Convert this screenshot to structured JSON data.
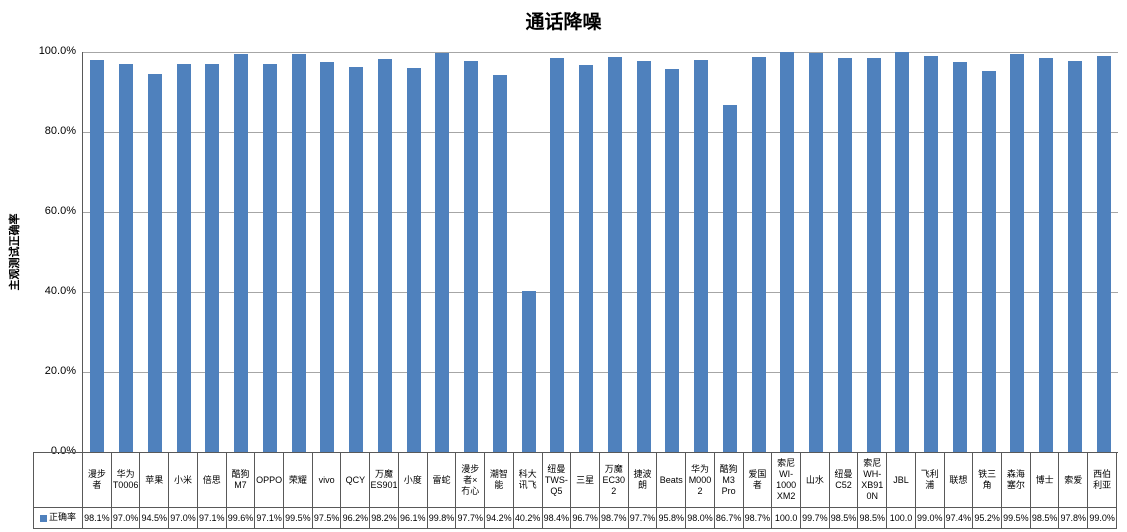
{
  "title": "通话降噪",
  "y_axis": {
    "title": "主观测试正确率",
    "ticks": [
      "100.0%",
      "80.0%",
      "60.0%",
      "40.0%",
      "20.0%",
      "0.0%"
    ]
  },
  "legend": {
    "label": "正确率",
    "key_color": "#4F81BD"
  },
  "colors": {
    "bar": "#4F81BD",
    "gridline": "#a6a6a6",
    "axis": "#595959",
    "table_border": "#595959"
  },
  "chart_data": {
    "type": "bar",
    "title": "通话降噪",
    "xlabel": "",
    "ylabel": "主观测试正确率",
    "ylim": [
      0,
      100
    ],
    "grid": true,
    "legend_position": "bottom-table-left",
    "series_name": "正确率",
    "categories": [
      "漫步者",
      "华为T0006",
      "苹果",
      "小米",
      "倍思",
      "酷狗M7",
      "OPPO",
      "荣耀",
      "vivo",
      "QCY",
      "万魔ES901",
      "小度",
      "雷蛇",
      "漫步者×冇心",
      "潮智能",
      "科大讯飞",
      "纽曼TWS-Q5",
      "三星",
      "万魔EC302",
      "捷波朗",
      "Beats",
      "华为M0002",
      "酷狗M3 Pro",
      "爱国者",
      "索尼WI-1000XM2",
      "山水",
      "纽曼C52",
      "索尼WH-XB910N",
      "JBL",
      "飞利浦",
      "联想",
      "铁三角",
      "森海塞尔",
      "博士",
      "索爱",
      "西伯利亚"
    ],
    "category_lines": [
      [
        "漫步",
        "者"
      ],
      [
        "华为",
        "T0006"
      ],
      [
        "苹果"
      ],
      [
        "小米"
      ],
      [
        "倍思"
      ],
      [
        "酷狗",
        "M7"
      ],
      [
        "OPPO"
      ],
      [
        "荣耀"
      ],
      [
        "vivo"
      ],
      [
        "QCY"
      ],
      [
        "万魔",
        "ES901"
      ],
      [
        "小度"
      ],
      [
        "雷蛇"
      ],
      [
        "漫步",
        "者×",
        "冇心"
      ],
      [
        "潮智",
        "能"
      ],
      [
        "科大",
        "讯飞"
      ],
      [
        "纽曼",
        "TWS-",
        "Q5"
      ],
      [
        "三星"
      ],
      [
        "万魔",
        "EC30",
        "2"
      ],
      [
        "捷波",
        "朗"
      ],
      [
        "Beats"
      ],
      [
        "华为",
        "M000",
        "2"
      ],
      [
        "酷狗",
        "M3",
        "Pro"
      ],
      [
        "爱国",
        "者"
      ],
      [
        "索尼",
        "WI-",
        "1000",
        "XM2"
      ],
      [
        "山水"
      ],
      [
        "纽曼",
        "C52"
      ],
      [
        "索尼",
        "WH-",
        "XB91",
        "0N"
      ],
      [
        "JBL"
      ],
      [
        "飞利",
        "浦"
      ],
      [
        "联想"
      ],
      [
        "铁三",
        "角"
      ],
      [
        "森海",
        "塞尔"
      ],
      [
        "博士"
      ],
      [
        "索爱"
      ],
      [
        "西伯",
        "利亚"
      ]
    ],
    "values": [
      98.1,
      97.0,
      94.5,
      97.0,
      97.1,
      99.6,
      97.1,
      99.5,
      97.5,
      96.2,
      98.2,
      96.1,
      99.8,
      97.7,
      94.2,
      40.2,
      98.4,
      96.7,
      98.7,
      97.7,
      95.8,
      98.0,
      86.7,
      98.7,
      100.0,
      99.7,
      98.5,
      98.5,
      100.0,
      99.0,
      97.4,
      95.2,
      99.5,
      98.5,
      97.8,
      99.0
    ],
    "value_labels": [
      "98.1%",
      "97.0%",
      "94.5%",
      "97.0%",
      "97.1%",
      "99.6%",
      "97.1%",
      "99.5%",
      "97.5%",
      "96.2%",
      "98.2%",
      "96.1%",
      "99.8%",
      "97.7%",
      "94.2%",
      "40.2%",
      "98.4%",
      "96.7%",
      "98.7%",
      "97.7%",
      "95.8%",
      "98.0%",
      "86.7%",
      "98.7%",
      "100.0",
      "99.7%",
      "98.5%",
      "98.5%",
      "100.0",
      "99.0%",
      "97.4%",
      "95.2%",
      "99.5%",
      "98.5%",
      "97.8%",
      "99.0%"
    ]
  }
}
